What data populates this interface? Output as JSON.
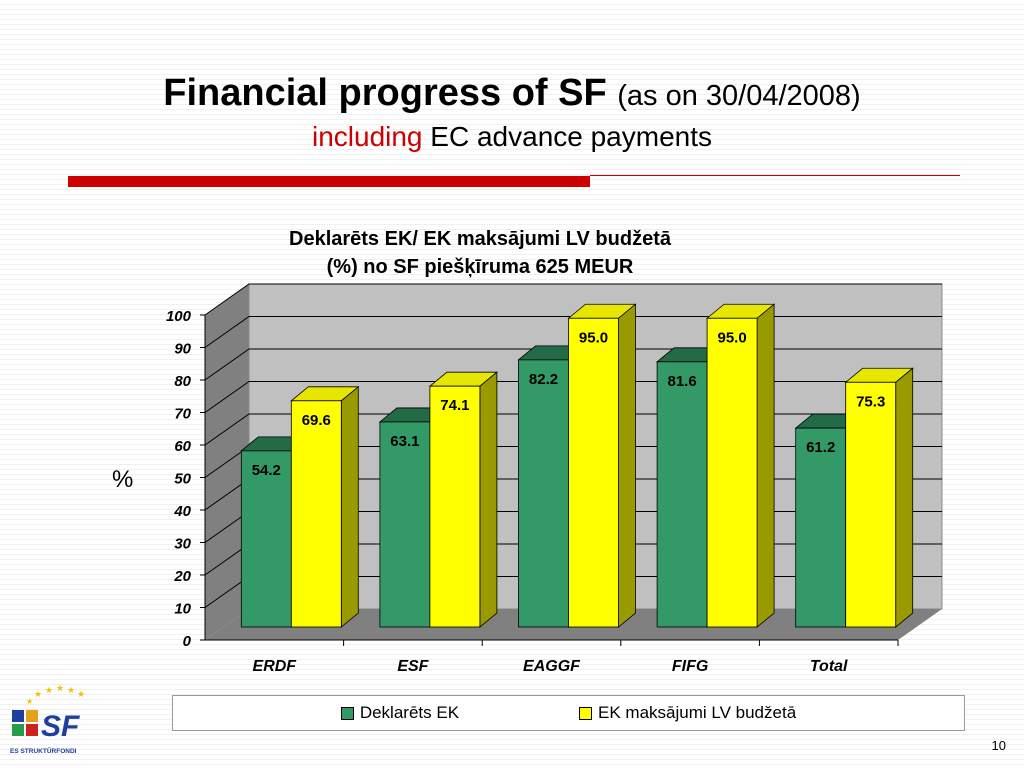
{
  "slide": {
    "title_main": "Financial progress of SF",
    "title_sub": "(as on 30/04/2008)",
    "subtitle_red": "including",
    "subtitle_rest": "EC advance payments",
    "page_number": "10"
  },
  "logo": {
    "text_sf": "SF",
    "caption": "ES STRUKTŪRFONDI"
  },
  "colors": {
    "series1": "#339966",
    "series1_top": "#236b47",
    "series1_side": "#1f5c3c",
    "series2": "#ffff00",
    "series2_top": "#e6e600",
    "series2_side": "#999900",
    "accent_red": "#cc0000",
    "wall_back": "#c0c0c0",
    "wall_left": "#808080",
    "floor": "#808080"
  },
  "chart_data": {
    "type": "bar",
    "title": "Deklarēts EK/ EK maksājumi LV budžetā (%) no SF piešķīruma 625 MEUR",
    "title_line1": "Deklarēts EK/ EK maksājumi LV budžetā",
    "title_line2": "(%) no SF piešķīruma 625 MEUR",
    "ylabel": "%",
    "xlabel": "",
    "ylim": [
      0,
      100
    ],
    "yticks": [
      0,
      10,
      20,
      30,
      40,
      50,
      60,
      70,
      80,
      90,
      100
    ],
    "grid": true,
    "legend_position": "bottom",
    "categories": [
      "ERDF",
      "ESF",
      "EAGGF",
      "FIFG",
      "Total"
    ],
    "series": [
      {
        "name": "Deklarēts EK",
        "values": [
          54.2,
          63.1,
          82.2,
          81.6,
          61.2
        ],
        "labels": [
          "54.2",
          "63.1",
          "82.2",
          "81.6",
          "61.2"
        ]
      },
      {
        "name": "EK maksājumi LV budžetā",
        "values": [
          69.6,
          74.1,
          95.0,
          95.0,
          75.3
        ],
        "labels": [
          "69.6",
          "74.1",
          "95.0",
          "95.0",
          "75.3"
        ]
      }
    ]
  }
}
